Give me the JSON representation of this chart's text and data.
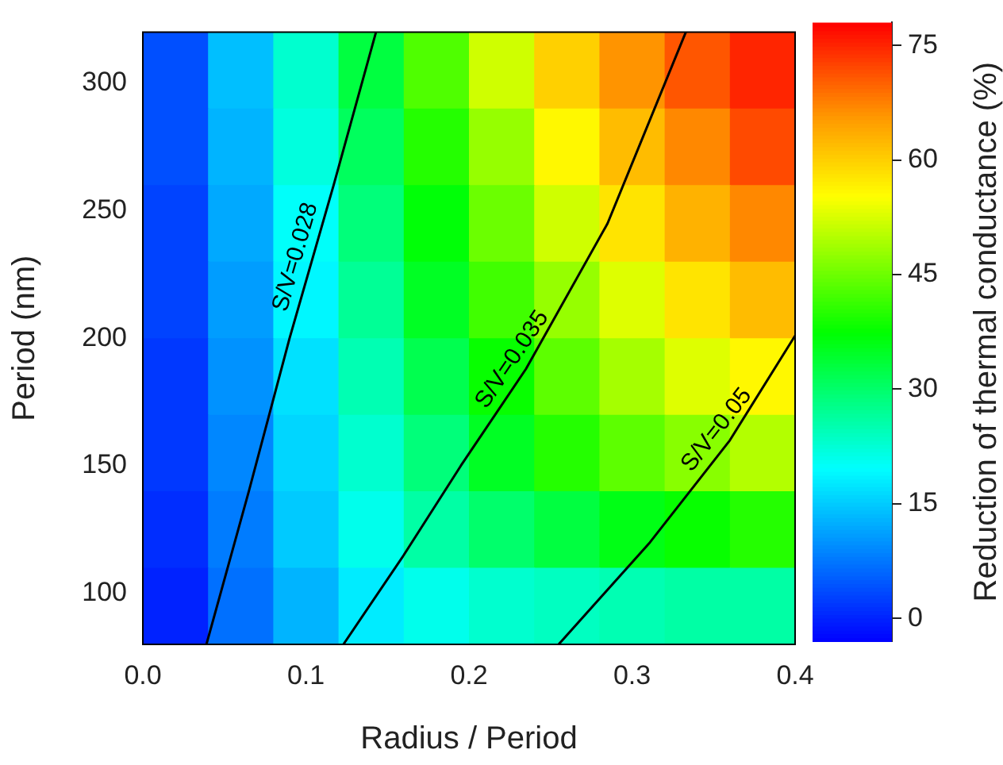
{
  "chart_data": {
    "type": "heatmap",
    "xlabel": "Radius / Period",
    "ylabel": "Period (nm)",
    "clabel": "Reduction of thermal conductance (%)",
    "x": [
      0.02,
      0.06,
      0.1,
      0.14,
      0.18,
      0.22,
      0.26,
      0.3,
      0.34,
      0.38
    ],
    "y": [
      305,
      275,
      245,
      215,
      185,
      155,
      125,
      95
    ],
    "cells": [
      [
        4,
        14,
        23,
        33,
        43,
        52,
        60,
        66,
        71,
        75
      ],
      [
        4,
        13,
        22,
        31,
        40,
        48,
        56,
        62,
        67,
        72
      ],
      [
        3,
        12,
        20,
        29,
        37,
        45,
        52,
        58,
        63,
        67
      ],
      [
        3,
        11,
        19,
        27,
        35,
        42,
        48,
        53,
        58,
        62
      ],
      [
        2,
        10,
        17,
        25,
        32,
        38,
        44,
        49,
        53,
        56
      ],
      [
        2,
        9,
        16,
        23,
        29,
        35,
        40,
        44,
        47,
        50
      ],
      [
        1,
        8,
        15,
        21,
        26,
        30,
        33,
        36,
        38,
        40
      ],
      [
        0,
        7,
        13,
        18,
        21,
        23,
        24,
        25,
        26,
        26
      ]
    ],
    "clim": [
      -3,
      78
    ],
    "cticks": [
      0,
      15,
      30,
      45,
      60,
      75
    ],
    "xlim": [
      0,
      0.4
    ],
    "xticks": [
      {
        "value": 0,
        "label": "0.0"
      },
      0.1,
      0.2,
      0.3,
      0.4
    ],
    "ylim": [
      80,
      320
    ],
    "yticks": [
      100,
      150,
      200,
      250,
      300
    ],
    "series": [
      {
        "type": "line",
        "name": "S/V=0.028",
        "color": "#000000",
        "x": [
          0.039,
          0.065,
          0.09,
          0.117,
          0.143
        ],
        "values": [
          80,
          140,
          200,
          260,
          320
        ]
      },
      {
        "type": "line",
        "name": "S/V=0.035",
        "color": "#000000",
        "x": [
          0.123,
          0.16,
          0.195,
          0.235,
          0.285,
          0.333
        ],
        "values": [
          80,
          115,
          150,
          188,
          245,
          320
        ]
      },
      {
        "type": "line",
        "name": "S/V=0.05",
        "color": "#000000",
        "x": [
          0.255,
          0.311,
          0.36,
          0.4
        ],
        "values": [
          80,
          120,
          160,
          201
        ]
      }
    ],
    "marker": "none",
    "legend": false
  }
}
